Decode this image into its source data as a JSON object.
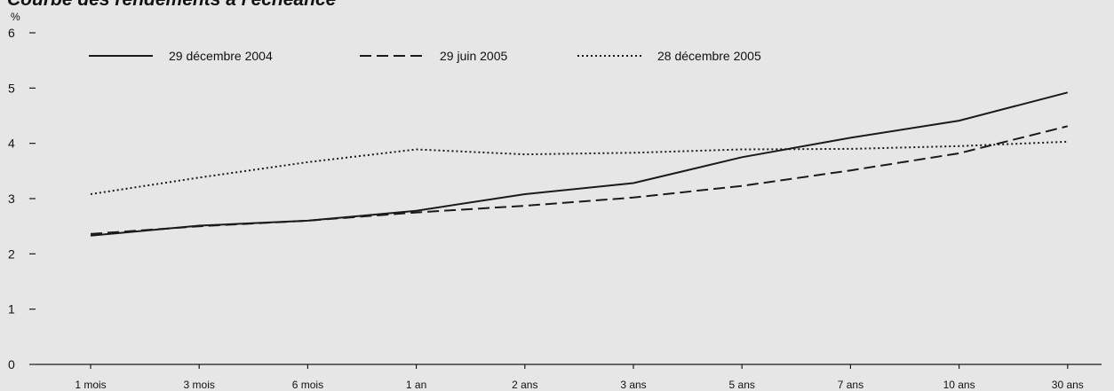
{
  "chart_data": {
    "type": "line",
    "title": "Courbe des rendements à l'échéance",
    "ylabel": "%",
    "xlabel": "",
    "ylim": [
      0,
      6
    ],
    "yticks": [
      "0",
      "1",
      "2",
      "3",
      "4",
      "5",
      "6"
    ],
    "categories": [
      "1 mois",
      "3 mois",
      "6 mois",
      "1 an",
      "2 ans",
      "3 ans",
      "5 ans",
      "7 ans",
      "10 ans",
      "30 ans"
    ],
    "grid": false,
    "legend_position": "top",
    "series": [
      {
        "name": "29 décembre 2004",
        "style": "solid",
        "color": "#1a1a1a",
        "values": [
          2.33,
          2.51,
          2.6,
          2.78,
          3.08,
          3.28,
          3.75,
          4.1,
          4.41,
          4.92
        ]
      },
      {
        "name": "29 juin 2005",
        "style": "dashed",
        "color": "#1a1a1a",
        "values": [
          2.36,
          2.5,
          2.6,
          2.75,
          2.87,
          3.02,
          3.23,
          3.51,
          3.82,
          4.31
        ]
      },
      {
        "name": "28 décembre 2005",
        "style": "dotted",
        "color": "#1a1a1a",
        "values": [
          3.08,
          3.38,
          3.66,
          3.89,
          3.8,
          3.83,
          3.89,
          3.9,
          3.95,
          4.03
        ]
      }
    ]
  }
}
